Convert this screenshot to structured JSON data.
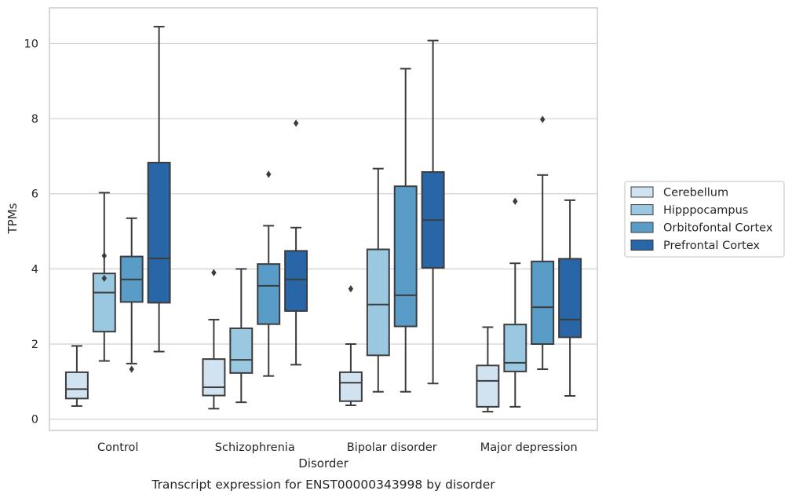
{
  "chart_data": {
    "type": "box",
    "title": "",
    "caption": "Transcript expression for ENST00000343998 by disorder",
    "xlabel": "Disorder",
    "ylabel": "TPMs",
    "ylim": [
      -0.3,
      10.95
    ],
    "yticks": [
      0,
      2,
      4,
      6,
      8,
      10
    ],
    "grid": "horizontal",
    "legend_position": "right",
    "categories": [
      "Control",
      "Schizophrenia",
      "Bipolar disorder",
      "Major depression"
    ],
    "series": [
      {
        "name": "Cerebellum",
        "color": "#d1e2f1",
        "boxes": [
          {
            "whislo": 0.35,
            "q1": 0.55,
            "med": 0.8,
            "q3": 1.25,
            "whishi": 1.95,
            "fliers": []
          },
          {
            "whislo": 0.28,
            "q1": 0.63,
            "med": 0.85,
            "q3": 1.6,
            "whishi": 2.65,
            "fliers": [
              3.9
            ]
          },
          {
            "whislo": 0.37,
            "q1": 0.48,
            "med": 0.97,
            "q3": 1.25,
            "whishi": 2.0,
            "fliers": [
              3.47
            ]
          },
          {
            "whislo": 0.2,
            "q1": 0.33,
            "med": 1.02,
            "q3": 1.43,
            "whishi": 2.45,
            "fliers": []
          }
        ]
      },
      {
        "name": "Hipppocampus",
        "color": "#9ac8e0",
        "boxes": [
          {
            "whislo": 1.55,
            "q1": 2.33,
            "med": 3.37,
            "q3": 3.88,
            "whishi": 6.03,
            "fliers": [
              4.35,
              3.75
            ]
          },
          {
            "whislo": 0.45,
            "q1": 1.23,
            "med": 1.58,
            "q3": 2.42,
            "whishi": 4.0,
            "fliers": []
          },
          {
            "whislo": 0.73,
            "q1": 1.7,
            "med": 3.05,
            "q3": 4.52,
            "whishi": 6.67,
            "fliers": []
          },
          {
            "whislo": 0.33,
            "q1": 1.27,
            "med": 1.5,
            "q3": 2.52,
            "whishi": 4.15,
            "fliers": [
              5.8
            ]
          }
        ]
      },
      {
        "name": "Orbitofontal Cortex",
        "color": "#5a9cc8",
        "boxes": [
          {
            "whislo": 1.48,
            "q1": 3.12,
            "med": 3.72,
            "q3": 4.33,
            "whishi": 5.35,
            "fliers": [
              1.33
            ]
          },
          {
            "whislo": 1.15,
            "q1": 2.53,
            "med": 3.55,
            "q3": 4.13,
            "whishi": 5.15,
            "fliers": [
              6.52
            ]
          },
          {
            "whislo": 0.73,
            "q1": 2.47,
            "med": 3.3,
            "q3": 6.2,
            "whishi": 9.33,
            "fliers": []
          },
          {
            "whislo": 1.33,
            "q1": 2.0,
            "med": 2.98,
            "q3": 4.2,
            "whishi": 6.5,
            "fliers": [
              7.98
            ]
          }
        ]
      },
      {
        "name": "Prefrontal Cortex",
        "color": "#2866a8",
        "boxes": [
          {
            "whislo": 1.8,
            "q1": 3.1,
            "med": 4.28,
            "q3": 6.83,
            "whishi": 10.45,
            "fliers": []
          },
          {
            "whislo": 1.45,
            "q1": 2.88,
            "med": 3.72,
            "q3": 4.48,
            "whishi": 5.1,
            "fliers": [
              7.88
            ]
          },
          {
            "whislo": 0.95,
            "q1": 4.03,
            "med": 5.3,
            "q3": 6.58,
            "whishi": 10.08,
            "fliers": []
          },
          {
            "whislo": 0.62,
            "q1": 2.18,
            "med": 2.65,
            "q3": 4.27,
            "whishi": 5.83,
            "fliers": []
          }
        ]
      }
    ]
  }
}
